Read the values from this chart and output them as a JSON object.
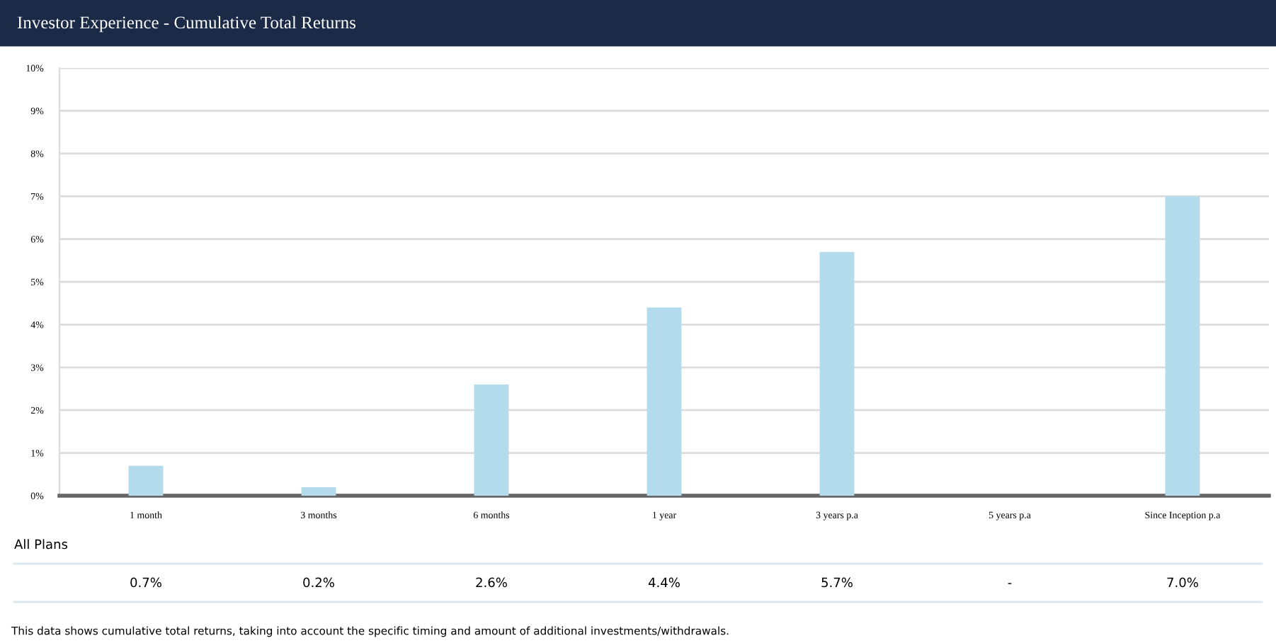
{
  "chart_data": {
    "type": "bar",
    "title": "Investor Experience - Cumulative Total Returns",
    "categories": [
      "1 month",
      "3 months",
      "6 months",
      "1 year",
      "3 years p.a",
      "5 years p.a",
      "Since Inception p.a"
    ],
    "series": [
      {
        "name": "All Plans",
        "color": "#b3dbec",
        "values": [
          0.7,
          0.2,
          2.6,
          4.4,
          5.7,
          null,
          7.0
        ],
        "value_labels": [
          "0.7%",
          "0.2%",
          "2.6%",
          "4.4%",
          "5.7%",
          "-",
          "7.0%"
        ]
      }
    ],
    "ylim": [
      0,
      10
    ],
    "yticks": [
      {
        "value": 0,
        "label": "0%"
      },
      {
        "value": 1,
        "label": "1%"
      },
      {
        "value": 2,
        "label": "2%"
      },
      {
        "value": 3,
        "label": "3%"
      },
      {
        "value": 4,
        "label": "4%"
      },
      {
        "value": 5,
        "label": "5%"
      },
      {
        "value": 6,
        "label": "6%"
      },
      {
        "value": 7,
        "label": "7%"
      },
      {
        "value": 8,
        "label": "8%"
      },
      {
        "value": 9,
        "label": "9%"
      },
      {
        "value": 10,
        "label": "10%"
      }
    ],
    "grid": "y",
    "annotations": [
      "This data shows cumulative total returns, taking into account the specific timing and amount of additional investments/withdrawals."
    ]
  }
}
